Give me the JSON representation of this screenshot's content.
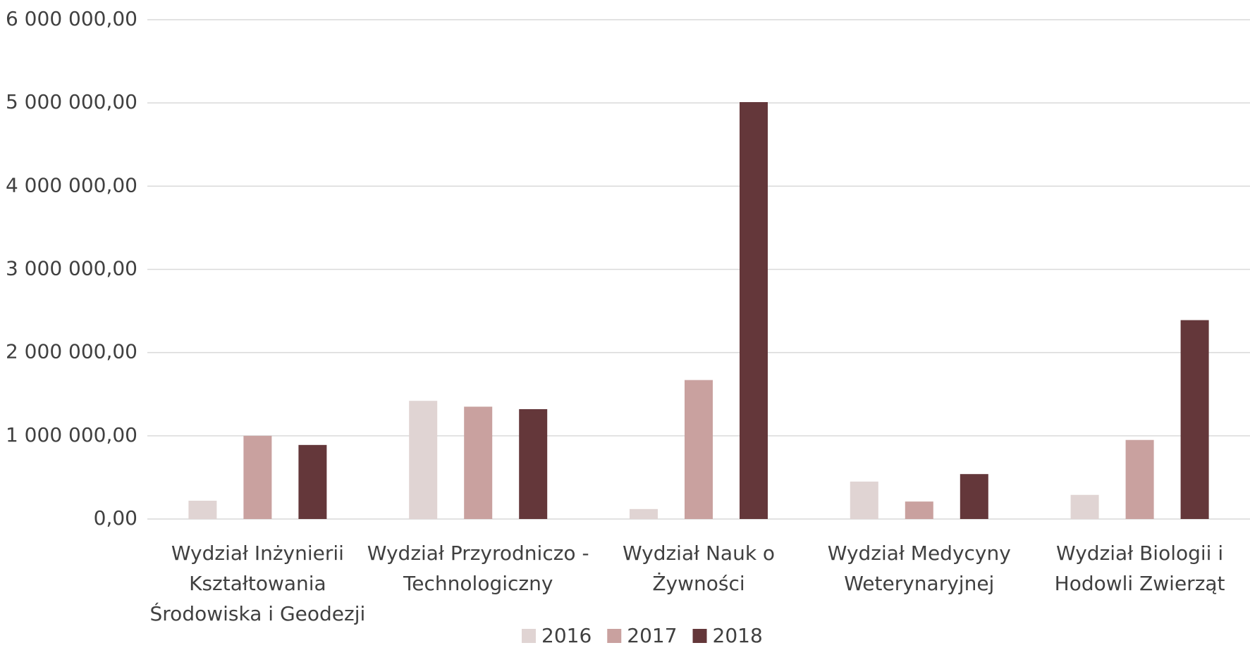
{
  "chart_data": {
    "type": "bar",
    "categories": [
      "Wydział Inżynierii Kształtowania Środowiska i Geodezji",
      "Wydział Przyrodniczo - Technologiczny",
      "Wydział Nauk o Żywności",
      "Wydział Medycyny Weterynaryjnej",
      "Wydział Biologii i Hodowli Zwierząt"
    ],
    "series": [
      {
        "name": "2016",
        "color": "#e0d4d3",
        "values": [
          220000,
          1420000,
          120000,
          450000,
          290000
        ]
      },
      {
        "name": "2017",
        "color": "#c9a19f",
        "values": [
          1000000,
          1350000,
          1670000,
          210000,
          950000
        ]
      },
      {
        "name": "2018",
        "color": "#64373a",
        "values": [
          890000,
          1320000,
          5010000,
          540000,
          2390000
        ]
      }
    ],
    "ylim": [
      0,
      6000000
    ],
    "yticks": [
      {
        "value": 0,
        "label": "0,00"
      },
      {
        "value": 1000000,
        "label": "1 000 000,00"
      },
      {
        "value": 2000000,
        "label": "2 000 000,00"
      },
      {
        "value": 3000000,
        "label": "3 000 000,00"
      },
      {
        "value": 4000000,
        "label": "4 000 000,00"
      },
      {
        "value": 5000000,
        "label": "5 000 000,00"
      },
      {
        "value": 6000000,
        "label": "6 000 000,00"
      }
    ],
    "grid": true,
    "legend": "bottom"
  }
}
